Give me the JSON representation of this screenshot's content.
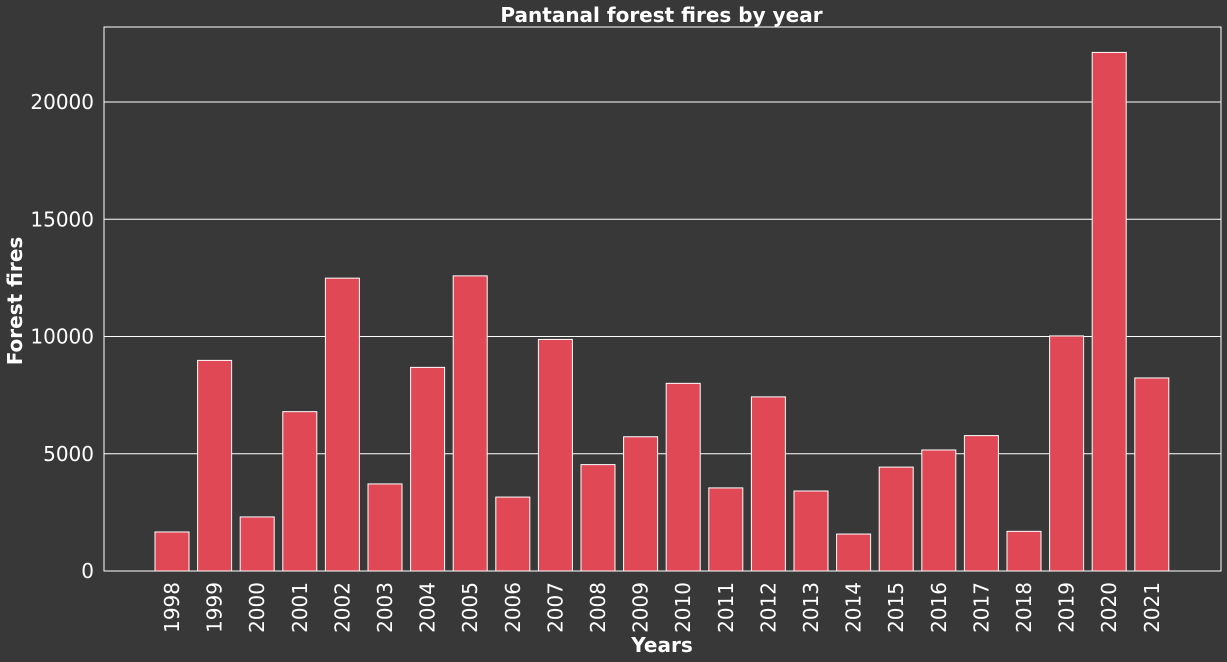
{
  "chart_data": {
    "type": "bar",
    "title": "Pantanal forest fires by year",
    "xlabel": "Years",
    "ylabel": "Forest fires",
    "categories": [
      "1998",
      "1999",
      "2000",
      "2001",
      "2002",
      "2003",
      "2004",
      "2005",
      "2006",
      "2007",
      "2008",
      "2009",
      "2010",
      "2011",
      "2012",
      "2013",
      "2014",
      "2015",
      "2016",
      "2017",
      "2018",
      "2019",
      "2020",
      "2021"
    ],
    "values": [
      1665,
      8982,
      2306,
      6795,
      12489,
      3714,
      8684,
      12587,
      3153,
      9876,
      4537,
      5725,
      8003,
      3544,
      7426,
      3412,
      1576,
      4431,
      5161,
      5774,
      1691,
      10025,
      22116,
      8233
    ],
    "ylim": [
      0,
      23200
    ],
    "yticks": [
      0,
      5000,
      10000,
      15000,
      20000
    ],
    "grid": "horizontal",
    "colors": {
      "bar": "#e04856",
      "bar_edge": "#ffffff",
      "background": "#383838",
      "grid": "#ffffff",
      "text": "#ffffff"
    }
  }
}
